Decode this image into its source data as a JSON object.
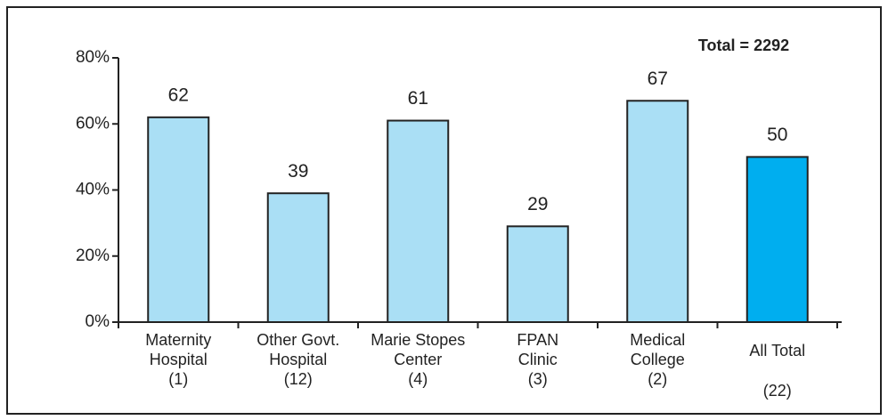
{
  "chart_data": {
    "type": "bar",
    "annotation": "Total = 2292",
    "categories": [
      [
        "Maternity",
        "Hospital",
        "(1)"
      ],
      [
        "Other Govt.",
        "Hospital",
        "(12)"
      ],
      [
        "Marie Stopes",
        "Center",
        "(4)"
      ],
      [
        "FPAN",
        "Clinic",
        "(3)"
      ],
      [
        "Medical",
        "College",
        "(2)"
      ],
      [
        "All Total",
        "(22)"
      ]
    ],
    "values": [
      62,
      39,
      61,
      29,
      67,
      50
    ],
    "colors": [
      "#aadff5",
      "#aadff5",
      "#aadff5",
      "#aadff5",
      "#aadff5",
      "#00aeef"
    ],
    "ylim": [
      0,
      80
    ],
    "yticks": [
      {
        "value": 0,
        "label": "0%"
      },
      {
        "value": 20,
        "label": "20%"
      },
      {
        "value": 40,
        "label": "40%"
      },
      {
        "value": 60,
        "label": "60%"
      },
      {
        "value": 80,
        "label": "80%"
      }
    ],
    "grid": false
  }
}
